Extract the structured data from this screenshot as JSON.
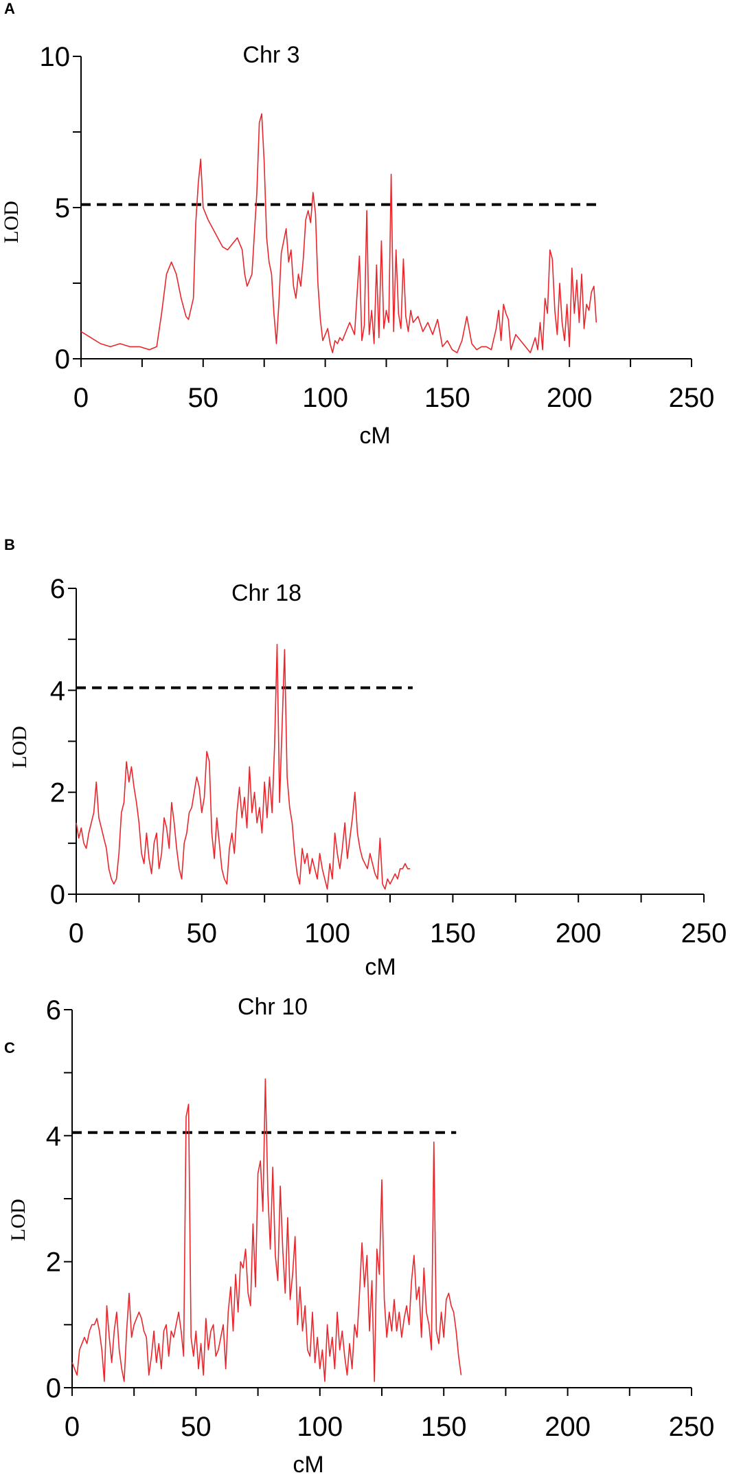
{
  "figure": {
    "panels": [
      "A",
      "B",
      "C"
    ]
  },
  "chart_data": [
    {
      "type": "line",
      "panel": "A",
      "title": "Chr 3",
      "xlabel": "cM",
      "ylabel": "LOD",
      "xlim": [
        0,
        250
      ],
      "ylim": [
        0,
        10
      ],
      "xticks": [
        0,
        50,
        100,
        150,
        200,
        250
      ],
      "xtick_labels": [
        "0",
        "50",
        "100",
        "150",
        "200",
        "250"
      ],
      "yticks": [
        0,
        5,
        10
      ],
      "ytick_labels": [
        "0",
        "5",
        "10"
      ],
      "x_minor_step": 25,
      "y_minor_step": 2.5,
      "threshold": {
        "value": 5.1,
        "x_range": [
          0,
          212
        ],
        "style": "dashed",
        "color": "#000000"
      },
      "series": [
        {
          "color": "#e8262b",
          "x": [
            0,
            4,
            8,
            12,
            16,
            20,
            24,
            28,
            31,
            33,
            35,
            37,
            39,
            41,
            43,
            44,
            46,
            47,
            48,
            49,
            50,
            51,
            52,
            54,
            56,
            58,
            60,
            62,
            64,
            66,
            67,
            68,
            70,
            72,
            73,
            74,
            75,
            76,
            77,
            78,
            79,
            80,
            81,
            82,
            84,
            85,
            86,
            87,
            88,
            89,
            90,
            91,
            92,
            93,
            94,
            95,
            96,
            97,
            98,
            99,
            100,
            101,
            102,
            103,
            104,
            105,
            106,
            107,
            108,
            110,
            112,
            114,
            115,
            116,
            117,
            118,
            119,
            120,
            121,
            122,
            123,
            124,
            125,
            126,
            127,
            128,
            129,
            130,
            131,
            132,
            133,
            134,
            135,
            136,
            138,
            140,
            142,
            144,
            146,
            148,
            150,
            152,
            154,
            156,
            158,
            160,
            162,
            164,
            166,
            168,
            170,
            171,
            172,
            173,
            174,
            175,
            176,
            178,
            180,
            182,
            184,
            186,
            187,
            188,
            189,
            190,
            191,
            192,
            193,
            194,
            195,
            196,
            197,
            198,
            199,
            200,
            201,
            202,
            203,
            204,
            205,
            206,
            207,
            208,
            209,
            210,
            211
          ],
          "y": [
            0.9,
            0.7,
            0.5,
            0.4,
            0.5,
            0.4,
            0.4,
            0.3,
            0.4,
            1.5,
            2.8,
            3.2,
            2.8,
            2.0,
            1.4,
            1.3,
            2.0,
            4.5,
            5.8,
            6.6,
            5.0,
            4.8,
            4.6,
            4.3,
            4.0,
            3.7,
            3.6,
            3.8,
            4.0,
            3.6,
            2.8,
            2.4,
            2.8,
            5.5,
            7.8,
            8.1,
            6.5,
            4.0,
            3.2,
            2.8,
            1.5,
            0.5,
            1.8,
            3.5,
            4.3,
            3.2,
            3.6,
            2.4,
            2.0,
            2.8,
            2.4,
            3.3,
            4.6,
            4.9,
            4.5,
            5.5,
            4.8,
            2.5,
            1.3,
            0.6,
            0.8,
            1.0,
            0.5,
            0.2,
            0.6,
            0.5,
            0.7,
            0.6,
            0.8,
            1.2,
            0.8,
            3.4,
            0.6,
            1.1,
            4.9,
            0.8,
            1.6,
            0.5,
            3.1,
            0.7,
            3.9,
            1.0,
            1.6,
            1.2,
            6.1,
            0.9,
            3.6,
            1.5,
            1.0,
            3.3,
            1.4,
            0.9,
            1.6,
            1.2,
            1.4,
            0.9,
            1.2,
            0.8,
            1.3,
            0.4,
            0.6,
            0.3,
            0.2,
            0.6,
            1.4,
            0.5,
            0.3,
            0.4,
            0.4,
            0.3,
            1.0,
            1.6,
            0.6,
            1.8,
            1.5,
            1.3,
            0.3,
            0.8,
            0.6,
            0.4,
            0.2,
            0.7,
            0.3,
            1.2,
            0.3,
            2.0,
            1.5,
            3.6,
            3.3,
            1.6,
            0.8,
            2.5,
            1.2,
            0.6,
            1.8,
            0.4,
            3.0,
            1.5,
            2.6,
            1.2,
            2.8,
            1.0,
            1.8,
            1.6,
            2.2,
            2.4,
            1.2
          ]
        }
      ]
    },
    {
      "type": "line",
      "panel": "B",
      "title": "Chr 18",
      "xlabel": "cM",
      "ylabel": "LOD",
      "xlim": [
        0,
        250
      ],
      "ylim": [
        0,
        6
      ],
      "xticks": [
        0,
        50,
        100,
        150,
        200,
        250
      ],
      "xtick_labels": [
        "0",
        "50",
        "100",
        "150",
        "200",
        "250"
      ],
      "yticks": [
        0,
        2,
        4,
        6
      ],
      "ytick_labels": [
        "0",
        "2",
        "4",
        "6"
      ],
      "x_minor_step": 25,
      "y_minor_step": 1,
      "threshold": {
        "value": 4.05,
        "x_range": [
          0,
          134
        ],
        "style": "dashed",
        "color": "#000000"
      },
      "series": [
        {
          "color": "#e8262b",
          "x": [
            0,
            1,
            2,
            3,
            4,
            5,
            6,
            7,
            8,
            9,
            10,
            11,
            12,
            13,
            14,
            15,
            16,
            17,
            18,
            19,
            20,
            21,
            22,
            23,
            24,
            25,
            26,
            27,
            28,
            29,
            30,
            31,
            32,
            33,
            34,
            35,
            36,
            37,
            38,
            39,
            40,
            41,
            42,
            43,
            44,
            45,
            46,
            47,
            48,
            49,
            50,
            51,
            52,
            53,
            54,
            55,
            56,
            57,
            58,
            59,
            60,
            61,
            62,
            63,
            64,
            65,
            66,
            67,
            68,
            69,
            70,
            71,
            72,
            73,
            74,
            75,
            76,
            77,
            78,
            79,
            80,
            81,
            82,
            83,
            84,
            85,
            86,
            87,
            88,
            89,
            90,
            91,
            92,
            93,
            94,
            95,
            96,
            97,
            98,
            99,
            100,
            101,
            102,
            103,
            104,
            105,
            106,
            107,
            108,
            109,
            110,
            111,
            112,
            113,
            114,
            115,
            116,
            117,
            118,
            119,
            120,
            121,
            122,
            123,
            124,
            125,
            126,
            127,
            128,
            129,
            130,
            131,
            132,
            133
          ],
          "y": [
            1.4,
            1.1,
            1.3,
            1.0,
            0.9,
            1.2,
            1.4,
            1.6,
            2.2,
            1.5,
            1.3,
            1.1,
            0.9,
            0.5,
            0.3,
            0.2,
            0.3,
            0.8,
            1.6,
            1.8,
            2.6,
            2.2,
            2.5,
            2.1,
            1.8,
            1.4,
            0.8,
            0.6,
            1.2,
            0.7,
            0.4,
            1.0,
            1.2,
            0.5,
            0.8,
            1.5,
            1.3,
            0.9,
            1.8,
            1.4,
            0.9,
            0.5,
            0.3,
            1.0,
            1.2,
            1.6,
            1.7,
            2.0,
            2.3,
            2.1,
            1.6,
            1.9,
            2.8,
            2.6,
            1.2,
            0.7,
            1.5,
            1.0,
            0.5,
            0.3,
            0.2,
            0.9,
            1.2,
            0.8,
            1.6,
            2.1,
            1.5,
            1.9,
            1.3,
            2.5,
            1.6,
            2.0,
            1.4,
            1.7,
            1.2,
            2.2,
            1.5,
            2.3,
            1.6,
            2.9,
            4.9,
            1.8,
            3.3,
            4.8,
            2.3,
            1.7,
            1.4,
            0.8,
            0.4,
            0.2,
            0.9,
            0.6,
            0.8,
            0.4,
            0.7,
            0.5,
            0.3,
            0.8,
            0.5,
            0.3,
            0.1,
            0.6,
            0.3,
            1.2,
            0.8,
            0.5,
            0.9,
            1.4,
            0.7,
            1.1,
            1.5,
            2.0,
            1.2,
            0.9,
            0.7,
            0.6,
            0.5,
            0.8,
            0.6,
            0.4,
            0.3,
            1.1,
            0.2,
            0.1,
            0.3,
            0.2,
            0.3,
            0.4,
            0.3,
            0.5,
            0.5,
            0.6,
            0.5,
            0.5
          ]
        }
      ]
    },
    {
      "type": "line",
      "panel": "C",
      "title": "Chr 10",
      "xlabel": "cM",
      "ylabel": "LOD",
      "xlim": [
        0,
        250
      ],
      "ylim": [
        0,
        6
      ],
      "xticks": [
        0,
        50,
        100,
        150,
        200,
        250
      ],
      "xtick_labels": [
        "0",
        "50",
        "100",
        "150",
        "200",
        "250"
      ],
      "yticks": [
        0,
        2,
        4,
        6
      ],
      "ytick_labels": [
        "0",
        "2",
        "4",
        "6"
      ],
      "x_minor_step": 25,
      "y_minor_step": 1,
      "threshold": {
        "value": 4.05,
        "x_range": [
          0,
          155
        ],
        "style": "dashed",
        "color": "#000000"
      },
      "series": [
        {
          "color": "#e8262b",
          "x": [
            0,
            1,
            2,
            3,
            4,
            5,
            6,
            7,
            8,
            9,
            10,
            11,
            12,
            13,
            14,
            15,
            16,
            17,
            18,
            19,
            20,
            21,
            22,
            23,
            24,
            25,
            26,
            27,
            28,
            29,
            30,
            31,
            32,
            33,
            34,
            35,
            36,
            37,
            38,
            39,
            40,
            41,
            42,
            43,
            44,
            45,
            46,
            47,
            48,
            49,
            50,
            51,
            52,
            53,
            54,
            55,
            56,
            57,
            58,
            59,
            60,
            61,
            62,
            63,
            64,
            65,
            66,
            67,
            68,
            69,
            70,
            71,
            72,
            73,
            74,
            75,
            76,
            77,
            78,
            79,
            80,
            81,
            82,
            83,
            84,
            85,
            86,
            87,
            88,
            89,
            90,
            91,
            92,
            93,
            94,
            95,
            96,
            97,
            98,
            99,
            100,
            101,
            102,
            103,
            104,
            105,
            106,
            107,
            108,
            109,
            110,
            111,
            112,
            113,
            114,
            115,
            116,
            117,
            118,
            119,
            120,
            121,
            122,
            123,
            124,
            125,
            126,
            127,
            128,
            129,
            130,
            131,
            132,
            133,
            134,
            135,
            136,
            137,
            138,
            139,
            140,
            141,
            142,
            143,
            144,
            145,
            146,
            147,
            148,
            149,
            150,
            151,
            152,
            153,
            154,
            155,
            156,
            157
          ],
          "y": [
            0.4,
            0.3,
            0.2,
            0.6,
            0.7,
            0.8,
            0.7,
            0.9,
            1.0,
            1.0,
            1.1,
            0.9,
            0.6,
            0.1,
            1.3,
            0.8,
            0.4,
            0.9,
            1.2,
            0.6,
            0.3,
            0.1,
            0.9,
            1.5,
            0.8,
            1.0,
            1.1,
            1.2,
            1.1,
            0.9,
            0.8,
            0.2,
            0.5,
            0.9,
            0.4,
            0.7,
            0.3,
            0.9,
            1.0,
            0.5,
            0.9,
            0.8,
            1.0,
            1.2,
            0.9,
            0.5,
            4.3,
            4.5,
            0.8,
            0.5,
            0.9,
            0.3,
            0.7,
            0.2,
            1.1,
            0.6,
            0.9,
            1.0,
            0.5,
            0.6,
            0.8,
            1.0,
            0.3,
            1.2,
            1.6,
            0.9,
            1.8,
            1.2,
            2.0,
            1.9,
            2.2,
            1.5,
            1.3,
            2.6,
            1.6,
            3.4,
            3.6,
            2.8,
            4.9,
            3.1,
            2.2,
            3.5,
            2.1,
            1.7,
            3.2,
            2.2,
            1.5,
            2.7,
            1.4,
            1.8,
            2.4,
            1.0,
            1.6,
            0.9,
            1.3,
            0.6,
            0.5,
            1.2,
            0.4,
            0.8,
            0.3,
            0.6,
            0.1,
            1.0,
            0.5,
            0.8,
            0.3,
            1.2,
            0.6,
            0.9,
            0.5,
            0.2,
            0.7,
            0.3,
            1.0,
            0.8,
            1.5,
            2.3,
            1.6,
            2.1,
            0.9,
            1.7,
            0.1,
            2.2,
            1.8,
            3.3,
            1.4,
            0.8,
            1.2,
            0.9,
            1.4,
            0.9,
            1.2,
            0.8,
            1.1,
            1.3,
            1.0,
            1.7,
            2.1,
            1.4,
            1.6,
            0.8,
            1.9,
            1.2,
            1.0,
            0.6,
            3.9,
            0.9,
            0.7,
            1.2,
            0.8,
            1.4,
            1.5,
            1.3,
            1.2,
            0.9,
            0.5,
            0.2
          ]
        }
      ]
    }
  ]
}
